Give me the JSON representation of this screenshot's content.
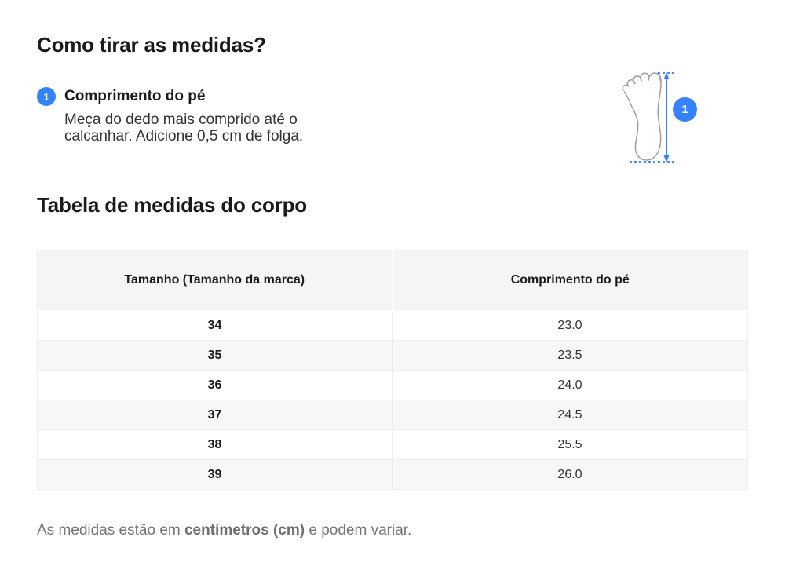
{
  "accent_color": "#3483fa",
  "foot_outline_color": "#9e9e9e",
  "header": {
    "title": "Como tirar as medidas?"
  },
  "measurement": {
    "number": "1",
    "label": "Comprimento do pé",
    "desc_line1": "Meça do dedo mais comprido até o",
    "desc_line2": "calcanhar. Adicione 0,5 cm de folga."
  },
  "illustration": {
    "badge_number": "1",
    "icon": "foot-outline-icon"
  },
  "table_section": {
    "title": "Tabela de medidas do corpo",
    "columns": [
      "Tamanho (Tamanho da marca)",
      "Comprimento do pé"
    ],
    "rows": [
      [
        "34",
        "23.0"
      ],
      [
        "35",
        "23.5"
      ],
      [
        "36",
        "24.0"
      ],
      [
        "37",
        "24.5"
      ],
      [
        "38",
        "25.5"
      ],
      [
        "39",
        "26.0"
      ]
    ]
  },
  "footnote": {
    "prefix": "As medidas estão em ",
    "bold": "centímetros (cm)",
    "suffix": " e podem variar."
  }
}
